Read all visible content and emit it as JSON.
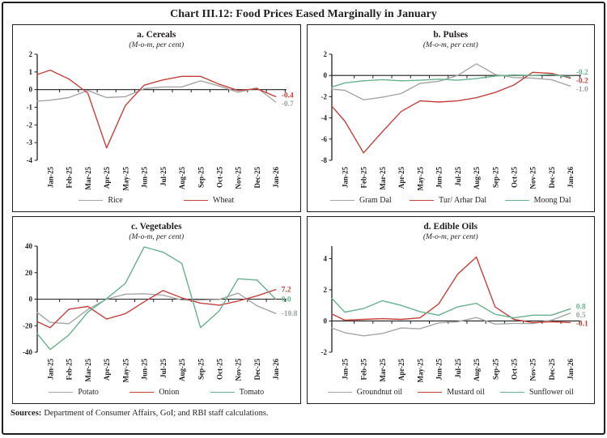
{
  "title": "Chart III.12: Food Prices Eased Marginally in January",
  "footer": {
    "label": "Sources:",
    "text": "Department of Consumer Affairs, GoI; and RBI staff calculations."
  },
  "colors": {
    "grey": "#a6a6a6",
    "red": "#c5413c",
    "green": "#68b18e",
    "ink": "#231f20",
    "grey_label": "#99a1a3"
  },
  "chart_data": [
    {
      "type": "line",
      "panel": "a. Cereals",
      "subtitle": "(M-o-m, per cent)",
      "categories": [
        "Jan-25",
        "Feb-25",
        "Mar-25",
        "Apr-25",
        "May-25",
        "Jun-25",
        "Jul-25",
        "Aug-25",
        "Sep-25",
        "Oct-25",
        "Nov-25",
        "Dec-25",
        "Jan-26"
      ],
      "ylim": [
        -4,
        2
      ],
      "yticks": [
        2,
        1,
        0,
        -1,
        -2,
        -3,
        -4
      ],
      "legend_position": "bottom",
      "grid": false,
      "series": [
        {
          "name": "Rice",
          "color": "grey",
          "edge_start": -0.65,
          "values": [
            -0.6,
            -0.45,
            -0.05,
            -0.45,
            -0.4,
            0.05,
            0.15,
            0.15,
            0.5,
            0.2,
            -0.15,
            0.1,
            -0.7
          ],
          "end_label": "-0.7"
        },
        {
          "name": "Wheat",
          "color": "red",
          "edge_start": 0.85,
          "values": [
            1.1,
            0.6,
            -0.2,
            -3.3,
            -0.9,
            0.25,
            0.55,
            0.75,
            0.75,
            0.3,
            -0.05,
            0.05,
            -0.4
          ],
          "end_label": "-0.4"
        }
      ]
    },
    {
      "type": "line",
      "panel": "b. Pulses",
      "subtitle": "(M-o-m, per cent)",
      "categories": [
        "Jan-25",
        "Feb-25",
        "Mar-25",
        "Apr-25",
        "May-25",
        "Jun-25",
        "Jul-25",
        "Aug-25",
        "Sep-25",
        "Oct-25",
        "Nov-25",
        "Dec-25",
        "Jan-26"
      ],
      "ylim": [
        -8,
        2
      ],
      "yticks": [
        2,
        0,
        -2,
        -4,
        -6,
        -8
      ],
      "legend_position": "bottom",
      "grid": false,
      "series": [
        {
          "name": "Gram Dal",
          "color": "grey",
          "edge_start": -1.3,
          "values": [
            -1.4,
            -2.3,
            -2.05,
            -1.7,
            -0.75,
            -0.55,
            0.0,
            1.1,
            0.1,
            -0.2,
            -0.25,
            -0.4,
            -1.0
          ],
          "end_label": "-1.0"
        },
        {
          "name": "Tur/ Arhar Dal",
          "color": "red",
          "edge_start": -2.9,
          "values": [
            -4.3,
            -7.3,
            -5.3,
            -3.4,
            -2.4,
            -2.5,
            -2.4,
            -2.1,
            -1.6,
            -0.9,
            0.3,
            0.2,
            -0.25
          ],
          "end_label": "-0.2"
        },
        {
          "name": "Moong Dal",
          "color": "green",
          "edge_start": -1.1,
          "values": [
            -0.7,
            -0.5,
            -0.4,
            -0.5,
            -0.45,
            -0.35,
            -0.45,
            -0.3,
            -0.05,
            0.05,
            0.0,
            0.1,
            -0.15
          ],
          "end_label": "-0.2"
        }
      ]
    },
    {
      "type": "line",
      "panel": "c. Vegetables",
      "subtitle": "(M-o-m, per cent)",
      "categories": [
        "Jan-25",
        "Feb-25",
        "Mar-25",
        "Apr-25",
        "May-25",
        "Jun-25",
        "Jul-25",
        "Aug-25",
        "Sep-25",
        "Oct-25",
        "Nov-25",
        "Dec-25",
        "Jan-26"
      ],
      "ylim": [
        -40,
        40
      ],
      "yticks": [
        40,
        20,
        0,
        -20,
        -40
      ],
      "legend_position": "bottom",
      "grid": false,
      "series": [
        {
          "name": "Potato",
          "color": "grey",
          "edge_start": -10.0,
          "values": [
            -17.5,
            -18.5,
            -7.8,
            0.0,
            3.7,
            4.1,
            3.0,
            -0.6,
            -0.6,
            -0.2,
            4.5,
            -5.0,
            -10.8
          ],
          "end_label": "-10.8"
        },
        {
          "name": "Onion",
          "color": "red",
          "edge_start": -17.0,
          "values": [
            -21.5,
            -7.6,
            -5.5,
            -15.0,
            -11.0,
            -2.0,
            6.5,
            1.0,
            -3.0,
            -4.5,
            -1.4,
            2.5,
            7.2
          ],
          "end_label": "7.2"
        },
        {
          "name": "Tomato",
          "color": "green",
          "edge_start": -26.0,
          "values": [
            -38.0,
            -27.0,
            -9.8,
            0.4,
            11.9,
            39.4,
            35.5,
            27.0,
            -21.5,
            -8.8,
            15.4,
            14.4,
            0.0
          ],
          "end_label": "0.0"
        }
      ]
    },
    {
      "type": "line",
      "panel": "d. Edible Oils",
      "subtitle": "(M-o-m, per cent)",
      "categories": [
        "Jan-25",
        "Feb-25",
        "Mar-25",
        "Apr-25",
        "May-25",
        "Jun-25",
        "Jul-25",
        "Aug-25",
        "Sep-25",
        "Oct-25",
        "Nov-25",
        "Dec-25",
        "Jan-26"
      ],
      "ylim": [
        -2,
        4.8
      ],
      "yticks": [
        4,
        2,
        0,
        -2
      ],
      "legend_position": "bottom",
      "grid": false,
      "series": [
        {
          "name": "Groundnut oil",
          "color": "grey",
          "edge_start": -0.45,
          "values": [
            -0.75,
            -0.95,
            -0.8,
            -0.45,
            -0.5,
            -0.12,
            -0.05,
            0.22,
            -0.2,
            -0.15,
            -0.17,
            0.05,
            0.5
          ],
          "end_label": "0.5"
        },
        {
          "name": "Mustard oil",
          "color": "red",
          "edge_start": 0.45,
          "values": [
            0.05,
            0.1,
            0.15,
            0.1,
            0.2,
            1.1,
            3.0,
            4.1,
            0.9,
            0.1,
            -0.1,
            -0.05,
            -0.1
          ],
          "end_label": "-0.1"
        },
        {
          "name": "Sunflower oil",
          "color": "green",
          "edge_start": 1.45,
          "values": [
            0.57,
            0.8,
            1.3,
            1.0,
            0.6,
            0.37,
            0.9,
            1.13,
            0.43,
            0.2,
            0.37,
            0.37,
            0.78
          ],
          "end_label": "0.8"
        }
      ]
    }
  ]
}
